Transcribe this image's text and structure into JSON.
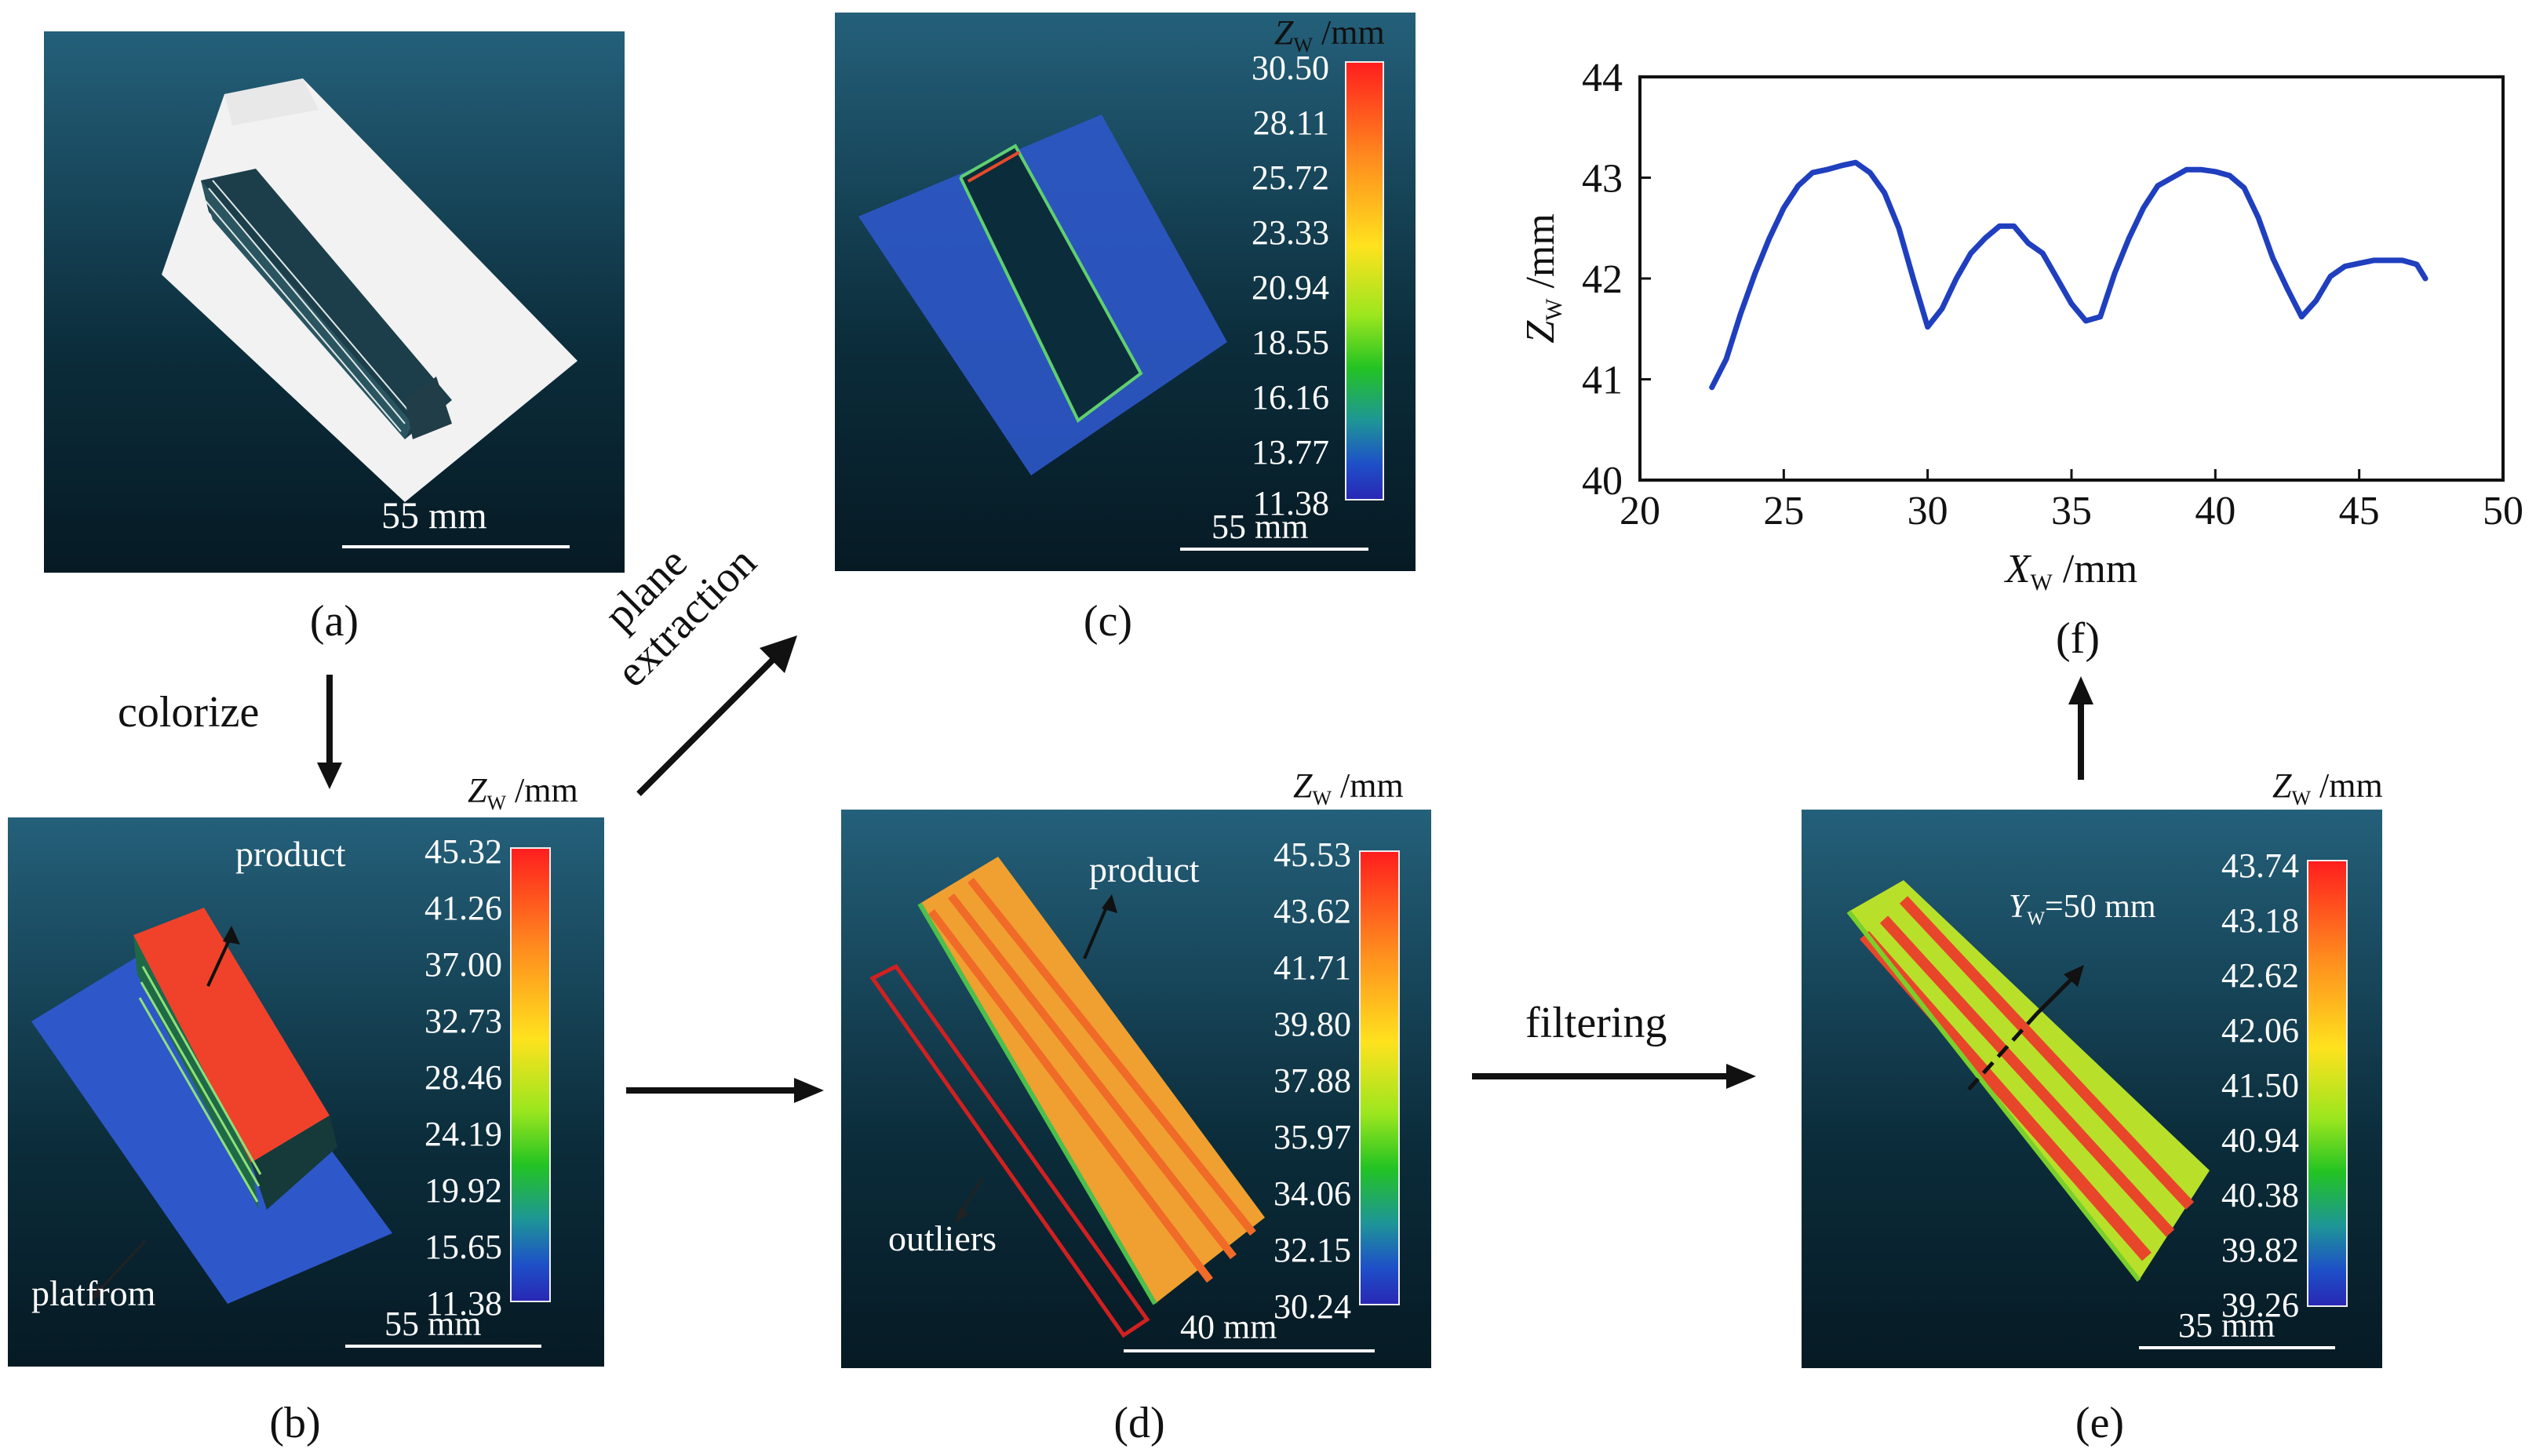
{
  "captions": {
    "a": "(a)",
    "b": "(b)",
    "c": "(c)",
    "d": "(d)",
    "e": "(e)",
    "f": "(f)"
  },
  "arrows": {
    "colorize": "colorize",
    "plane_line1": "plane",
    "plane_line2": "extraction",
    "filtering": "filtering"
  },
  "panel_a": {
    "scale": "55 mm"
  },
  "panel_b": {
    "unit_symbol": "Z",
    "unit_sub": "W",
    "unit_rest": " /mm",
    "ticks": [
      "45.32",
      "41.26",
      "37.00",
      "32.73",
      "28.46",
      "24.19",
      "19.92",
      "15.65",
      "11.38"
    ],
    "scale": "55 mm",
    "label_product": "product",
    "label_platform": "platfrom"
  },
  "panel_c": {
    "unit_symbol": "Z",
    "unit_sub": "W",
    "unit_rest": " /mm",
    "ticks": [
      "30.50",
      "28.11",
      "25.72",
      "23.33",
      "20.94",
      "18.55",
      "16.16",
      "13.77",
      "11.38"
    ],
    "scale": "55 mm"
  },
  "panel_d": {
    "unit_symbol": "Z",
    "unit_sub": "W",
    "unit_rest": " /mm",
    "ticks": [
      "45.53",
      "43.62",
      "41.71",
      "39.80",
      "37.88",
      "35.97",
      "34.06",
      "32.15",
      "30.24"
    ],
    "scale": "40 mm",
    "label_product": "product",
    "label_outliers": "outliers"
  },
  "panel_e": {
    "unit_symbol": "Z",
    "unit_sub": "W",
    "unit_rest": " /mm",
    "ticks": [
      "43.74",
      "43.18",
      "42.62",
      "42.06",
      "41.50",
      "40.94",
      "40.38",
      "39.82",
      "39.26"
    ],
    "scale": "35 mm",
    "label_section": "Y",
    "label_section_sub": "W",
    "label_section_rest": "=50 mm"
  },
  "chart_data": {
    "type": "line",
    "xlabel": "X_W /mm",
    "ylabel": "Z_W /mm",
    "xlabel_symbol": "X",
    "xlabel_sub": "W",
    "xlabel_rest": " /mm",
    "ylabel_symbol": "Z",
    "ylabel_sub": "W",
    "ylabel_rest": " /mm",
    "xlim": [
      20,
      50
    ],
    "ylim": [
      40,
      44
    ],
    "xticks": [
      "20",
      "25",
      "30",
      "35",
      "40",
      "45",
      "50"
    ],
    "yticks": [
      "40",
      "41",
      "42",
      "43",
      "44"
    ],
    "line_color": "#1f3fbf",
    "series": [
      {
        "x": [
          22.5,
          23.0,
          23.5,
          24.0,
          24.5,
          25.0,
          25.5,
          26.0,
          26.5,
          27.0,
          27.5,
          28.0,
          28.5,
          29.0,
          29.5,
          30.0,
          30.5,
          31.0,
          31.5,
          32.0,
          32.5,
          33.0,
          33.5,
          34.0,
          34.5,
          35.0,
          35.5,
          36.0,
          36.5,
          37.0,
          37.5,
          38.0,
          38.5,
          39.0,
          39.5,
          40.0,
          40.5,
          41.0,
          41.5,
          42.0,
          42.5,
          43.0,
          43.5,
          44.0,
          44.5,
          45.0,
          45.5,
          46.0,
          46.5,
          47.0,
          47.3
        ],
        "y": [
          40.92,
          41.2,
          41.65,
          42.05,
          42.4,
          42.7,
          42.92,
          43.05,
          43.08,
          43.12,
          43.15,
          43.05,
          42.85,
          42.5,
          42.0,
          41.52,
          41.7,
          42.0,
          42.25,
          42.4,
          42.52,
          42.52,
          42.35,
          42.25,
          42.0,
          41.75,
          41.58,
          41.62,
          42.05,
          42.4,
          42.7,
          42.92,
          43.0,
          43.08,
          43.08,
          43.06,
          43.02,
          42.9,
          42.6,
          42.2,
          41.9,
          41.62,
          41.78,
          42.02,
          42.12,
          42.15,
          42.18,
          42.18,
          42.18,
          42.14,
          42.0
        ]
      }
    ]
  },
  "colors": {
    "panel_bg_top": "#24607a",
    "panel_bg_bottom": "#061a24",
    "platform_blue": "#2e58c9",
    "product_red": "#f0422a",
    "outlier_box": "#d22020",
    "curve": "#1f3fbf"
  }
}
